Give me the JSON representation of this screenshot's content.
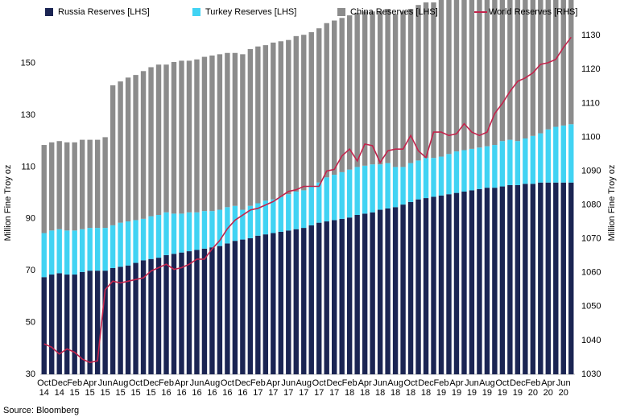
{
  "chart_data": {
    "type": "bar",
    "stacked": true,
    "categories": [
      "Oct 14",
      null,
      "Dec 14",
      null,
      "Feb 15",
      null,
      "Apr 15",
      null,
      "Jun 15",
      null,
      "Aug 15",
      null,
      "Oct 15",
      null,
      "Dec 15",
      null,
      "Feb 16",
      null,
      "Apr 16",
      null,
      "Jun 16",
      null,
      "Aug 16",
      null,
      "Oct 16",
      null,
      "Dec 16",
      null,
      "Feb 17",
      null,
      "Apr 17",
      null,
      "Jun 17",
      null,
      "Aug 17",
      null,
      "Oct 17",
      null,
      "Dec 17",
      null,
      "Feb 18",
      null,
      "Apr 18",
      null,
      "Jun 18",
      null,
      "Aug 18",
      null,
      "Oct 18",
      null,
      "Dec 18",
      null,
      "Feb 19",
      null,
      "Apr 19",
      null,
      "Jun 19",
      null,
      "Aug 19",
      null,
      "Oct 19",
      null,
      "Dec 19",
      null,
      "Feb 20",
      null,
      "Apr 20",
      null,
      "Jun 20",
      null
    ],
    "series": [
      {
        "name": "Russia Reserves [LHS]",
        "color": "#1b2553",
        "type": "bar",
        "values": [
          37.5,
          38.5,
          39,
          38.5,
          38.5,
          39.5,
          40,
          40,
          40,
          41,
          41.5,
          42,
          43,
          44,
          44.5,
          45,
          46,
          46.5,
          47,
          47.5,
          48,
          48.5,
          49,
          49.5,
          50.5,
          51.5,
          52,
          52.5,
          53.5,
          54,
          54.5,
          55,
          55.5,
          56,
          56.5,
          57.5,
          58.5,
          59,
          59.5,
          60,
          60.5,
          61.5,
          62,
          62.5,
          63.5,
          64,
          64.5,
          65.5,
          66.5,
          67.5,
          68,
          68.5,
          69,
          69.5,
          70,
          70.5,
          71,
          71.5,
          72,
          72,
          72.5,
          73,
          73,
          73.5,
          73.5,
          74,
          74,
          74,
          74,
          74
        ]
      },
      {
        "name": "Turkey Reserves [LHS]",
        "color": "#41d3f3",
        "type": "bar",
        "values": [
          17,
          17,
          17,
          17,
          17,
          16.5,
          16.5,
          16.5,
          16.5,
          16.5,
          17,
          17,
          16.5,
          16,
          16.5,
          16.5,
          16.5,
          15.5,
          15,
          15,
          14.5,
          14.5,
          14,
          14,
          14,
          13.5,
          11.5,
          12.5,
          12.5,
          13,
          13,
          13.5,
          14,
          14.5,
          14.5,
          15,
          15.5,
          17,
          17.5,
          18,
          18.5,
          18.5,
          18.5,
          18.5,
          17.5,
          17.5,
          15.5,
          14.5,
          15,
          15,
          15.5,
          15,
          15,
          15.5,
          16,
          16,
          16,
          16,
          16,
          16.5,
          17.5,
          17.5,
          17,
          17.5,
          18.5,
          19,
          20.5,
          21.5,
          22,
          22.5
        ]
      },
      {
        "name": "China Reserves [LHS]",
        "color": "#8c8c8c",
        "type": "bar",
        "values": [
          34,
          34,
          34,
          34,
          34,
          34.5,
          34,
          34,
          35,
          54,
          54.5,
          55.5,
          56,
          57,
          57.5,
          58,
          57,
          58.5,
          59,
          58.5,
          59,
          59.5,
          60,
          60,
          59.5,
          59,
          60,
          60.5,
          60.5,
          60,
          60.5,
          60,
          59.5,
          60,
          60,
          59.5,
          59.5,
          59.5,
          59.5,
          59.5,
          59.5,
          59.5,
          59.5,
          59,
          59,
          59.5,
          59,
          60,
          59.5,
          60,
          60,
          60,
          60.5,
          60.5,
          61,
          61,
          61.5,
          62,
          62.5,
          63,
          63,
          63,
          62.5,
          62.5,
          62.5,
          62.5,
          62,
          62,
          62.5,
          62.5
        ]
      },
      {
        "name": "World Reserves [RHS]",
        "color": "#c3244c",
        "type": "line",
        "axis": "y2",
        "values": [
          1039,
          1038,
          1036,
          1037.5,
          1036.5,
          1034.5,
          1033.5,
          1034,
          1055,
          1057.5,
          1057,
          1057.5,
          1058,
          1058.5,
          1060.5,
          1061.5,
          1062.5,
          1061,
          1061.5,
          1062.5,
          1064,
          1064,
          1067,
          1069.5,
          1073,
          1075.5,
          1077,
          1078.5,
          1079,
          1080,
          1081,
          1082.5,
          1084,
          1084.5,
          1085.5,
          1085.5,
          1085.5,
          1090,
          1090.5,
          1094.5,
          1096.5,
          1093,
          1098,
          1097.5,
          1092.5,
          1096,
          1096.5,
          1096.5,
          1100.5,
          1096,
          1094,
          1101.5,
          1101.5,
          1100.5,
          1101,
          1104,
          1101.5,
          1100.5,
          1101.5,
          1107,
          1110,
          1113.5,
          1116.5,
          1117.5,
          1119,
          1121.5,
          1122,
          1123,
          1126.5,
          1129.5
        ]
      }
    ],
    "ylabel": "Million Fine Troy oz",
    "y2label": "Million Fine Troy oz",
    "ylim": [
      30,
      162
    ],
    "yticks": [
      30,
      50,
      70,
      90,
      110,
      130,
      150
    ],
    "y2lim": [
      1030,
      1131
    ],
    "y2ticks": [
      1030,
      1040,
      1050,
      1060,
      1070,
      1080,
      1090,
      1100,
      1110,
      1120,
      1130
    ],
    "grid": false,
    "legend": "top",
    "source": "Source: Bloomberg"
  }
}
